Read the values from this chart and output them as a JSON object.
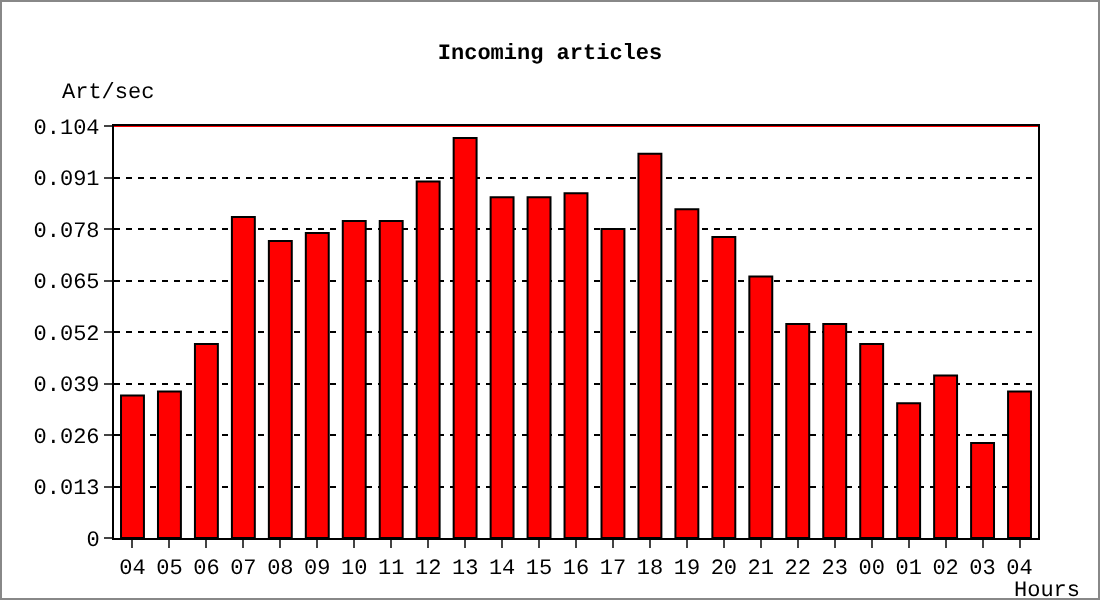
{
  "chart_data": {
    "type": "bar",
    "title": "Incoming articles",
    "ylabel": "Art/sec",
    "xlabel": "Hours",
    "categories": [
      "04",
      "05",
      "06",
      "07",
      "08",
      "09",
      "10",
      "11",
      "12",
      "13",
      "14",
      "15",
      "16",
      "17",
      "18",
      "19",
      "20",
      "21",
      "22",
      "23",
      "00",
      "01",
      "02",
      "03",
      "04"
    ],
    "values": [
      0.036,
      0.037,
      0.049,
      0.081,
      0.075,
      0.077,
      0.08,
      0.08,
      0.09,
      0.101,
      0.086,
      0.086,
      0.087,
      0.078,
      0.097,
      0.083,
      0.076,
      0.066,
      0.054,
      0.054,
      0.049,
      0.034,
      0.041,
      0.024,
      0.037
    ],
    "color": "#ff0000",
    "ylim": [
      0,
      0.104
    ],
    "yticks": [
      "0",
      0.013,
      0.026,
      0.039,
      0.052,
      0.065,
      0.078,
      0.091,
      0.104
    ],
    "ref_lines": [
      {
        "axis": "y",
        "value": 0.104,
        "color": "#ff0000"
      }
    ],
    "grid": "y"
  }
}
